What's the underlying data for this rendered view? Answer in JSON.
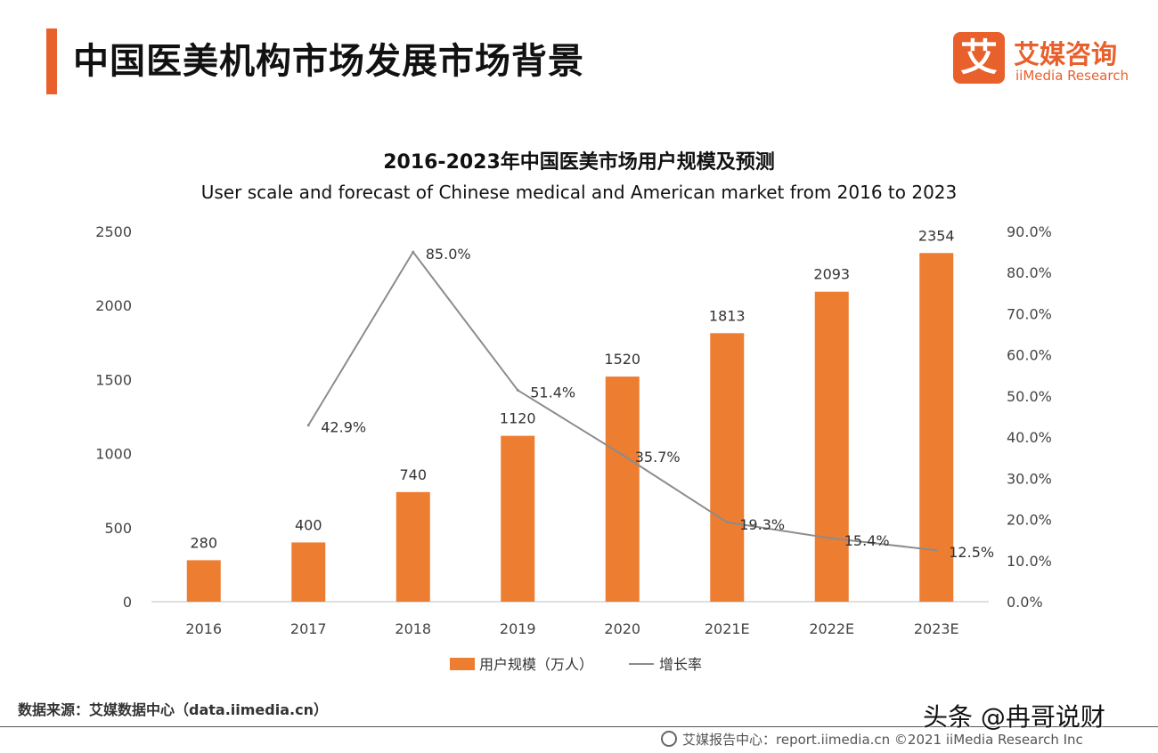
{
  "header": {
    "title": "中国医美机构市场发展市场背景",
    "logo_mark": "艾",
    "logo_cn": "艾媒咨询",
    "logo_en": "iiMedia Research"
  },
  "chart_data": {
    "type": "bar",
    "title": "2016-2023年中国医美市场用户规模及预测",
    "subtitle": "User scale and forecast of Chinese medical and American market from 2016 to 2023",
    "categories": [
      "2016",
      "2017",
      "2018",
      "2019",
      "2020",
      "2021E",
      "2022E",
      "2023E"
    ],
    "series": [
      {
        "name": "用户规模（万人）",
        "type": "bar",
        "axis": "left",
        "color": "#ed7d31",
        "values": [
          280,
          400,
          740,
          1120,
          1520,
          1813,
          2093,
          2354
        ],
        "labels": [
          "280",
          "400",
          "740",
          "1120",
          "1520",
          "1813",
          "2093",
          "2354"
        ]
      },
      {
        "name": "增长率",
        "type": "line",
        "axis": "right",
        "color": "#8c8c8c",
        "values": [
          null,
          42.9,
          85.0,
          51.4,
          35.7,
          19.3,
          15.4,
          12.5
        ],
        "labels": [
          "",
          "42.9%",
          "85.0%",
          "51.4%",
          "35.7%",
          "19.3%",
          "15.4%",
          "12.5%"
        ]
      }
    ],
    "y_left": {
      "min": 0,
      "max": 2500,
      "ticks": [
        "0",
        "500",
        "1000",
        "1500",
        "2000",
        "2500"
      ]
    },
    "y_right": {
      "min": 0,
      "max": 90,
      "ticks": [
        "0.0%",
        "10.0%",
        "20.0%",
        "30.0%",
        "40.0%",
        "50.0%",
        "60.0%",
        "70.0%",
        "80.0%",
        "90.0%"
      ]
    },
    "grid": false,
    "legend_position": "bottom"
  },
  "source": "数据来源：艾媒数据中心（data.iimedia.cn）",
  "footer": "艾媒报告中心：report.iimedia.cn  ©2021  iiMedia Research Inc",
  "watermark": "头条 @冉哥说财"
}
